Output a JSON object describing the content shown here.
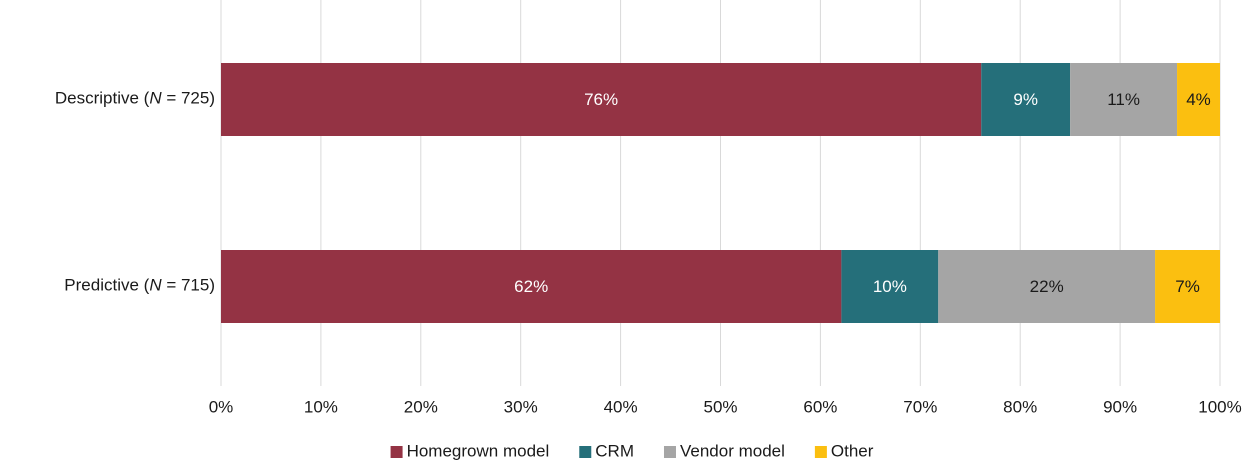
{
  "chart_data": {
    "type": "stacked_barh",
    "categories": [
      "Descriptive (N = 725)",
      "Predictive (N = 715)"
    ],
    "series": [
      {
        "name": "Homegrown model",
        "color": "#943344",
        "label_color": "#ffffff",
        "values": [
          76.1,
          62.1
        ],
        "value_labels": [
          "76%",
          "62%"
        ]
      },
      {
        "name": "CRM",
        "color": "#256f7a",
        "label_color": "#ffffff",
        "values": [
          8.9,
          9.7
        ],
        "value_labels": [
          "9%",
          "10%"
        ]
      },
      {
        "name": "Vendor model",
        "color": "#a5a5a5",
        "label_color": "#1a1a1a",
        "values": [
          10.7,
          21.7
        ],
        "value_labels": [
          "11%",
          "22%"
        ]
      },
      {
        "name": "Other",
        "color": "#fbbf10",
        "label_color": "#1a1a1a",
        "values": [
          4.3,
          6.5
        ],
        "value_labels": [
          "4%",
          "7%"
        ]
      }
    ],
    "xlim": [
      0,
      100
    ],
    "xticks": [
      {
        "value": 0,
        "label": "0%"
      },
      {
        "value": 10,
        "label": "10%"
      },
      {
        "value": 20,
        "label": "20%"
      },
      {
        "value": 30,
        "label": "30%"
      },
      {
        "value": 40,
        "label": "40%"
      },
      {
        "value": 50,
        "label": "50%"
      },
      {
        "value": 60,
        "label": "60%"
      },
      {
        "value": 70,
        "label": "70%"
      },
      {
        "value": 80,
        "label": "80%"
      },
      {
        "value": 90,
        "label": "90%"
      },
      {
        "value": 100,
        "label": "100%"
      }
    ],
    "grid": true,
    "legend": "bottom"
  }
}
